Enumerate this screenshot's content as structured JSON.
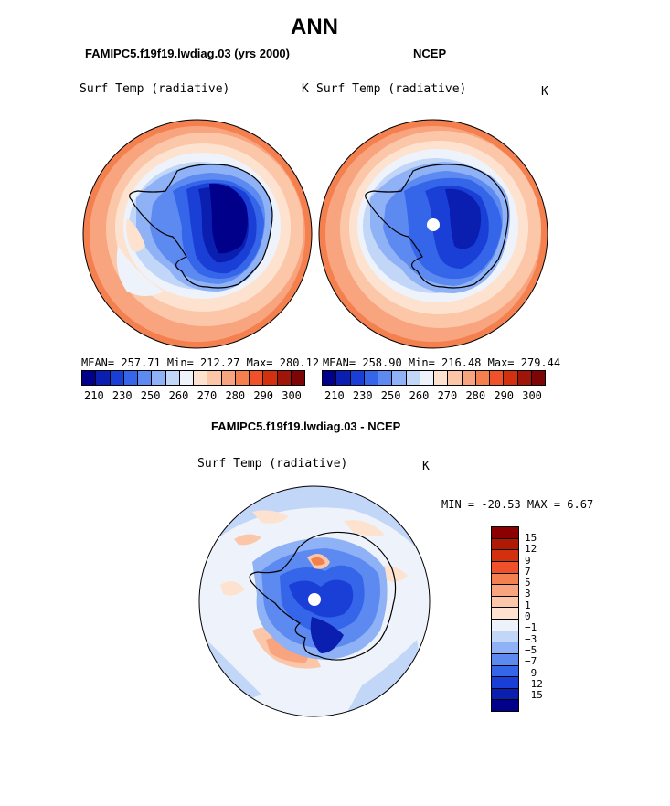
{
  "title": "ANN",
  "panels": [
    {
      "name": "FAMIPC5.f19f19.lwdiag.03 (yrs 2000)",
      "field": "Surf Temp (radiative)",
      "units": "K",
      "stats": "MEAN= 257.71   Min= 212.27   Max= 280.12"
    },
    {
      "name": "NCEP",
      "field": "Surf Temp (radiative)",
      "units": "K",
      "stats": "MEAN= 258.90   Min= 216.48   Max= 279.44"
    }
  ],
  "colorbar_top": {
    "colors": [
      "#00008b",
      "#0a1fb0",
      "#1a3fd6",
      "#3565e8",
      "#5d8af0",
      "#8fb1f5",
      "#c2d6f8",
      "#eef3fb",
      "#fde3cf",
      "#fbc7a8",
      "#f8a47e",
      "#f4804f",
      "#f0512a",
      "#d3300f",
      "#a0150a",
      "#7d0505"
    ],
    "labels": [
      "210",
      "230",
      "250",
      "260",
      "270",
      "280",
      "290",
      "300"
    ]
  },
  "diff": {
    "name": "FAMIPC5.f19f19.lwdiag.03 - NCEP",
    "field": "Surf Temp (radiative)",
    "units": "K",
    "minmax": "MIN = -20.53 MAX =   6.67",
    "colors": [
      "#8b0000",
      "#b01a05",
      "#d3300f",
      "#f0512a",
      "#f4804f",
      "#f8a47e",
      "#fbc7a8",
      "#fde3cf",
      "#eef3fb",
      "#c2d6f8",
      "#8fb1f5",
      "#5d8af0",
      "#3565e8",
      "#1a3fd6",
      "#0a1fb0",
      "#00008b"
    ],
    "labels": [
      "15",
      "12",
      "9",
      "7",
      "5",
      "3",
      "1",
      "0",
      "−1",
      "−3",
      "−5",
      "−7",
      "−9",
      "−12",
      "−15"
    ]
  }
}
